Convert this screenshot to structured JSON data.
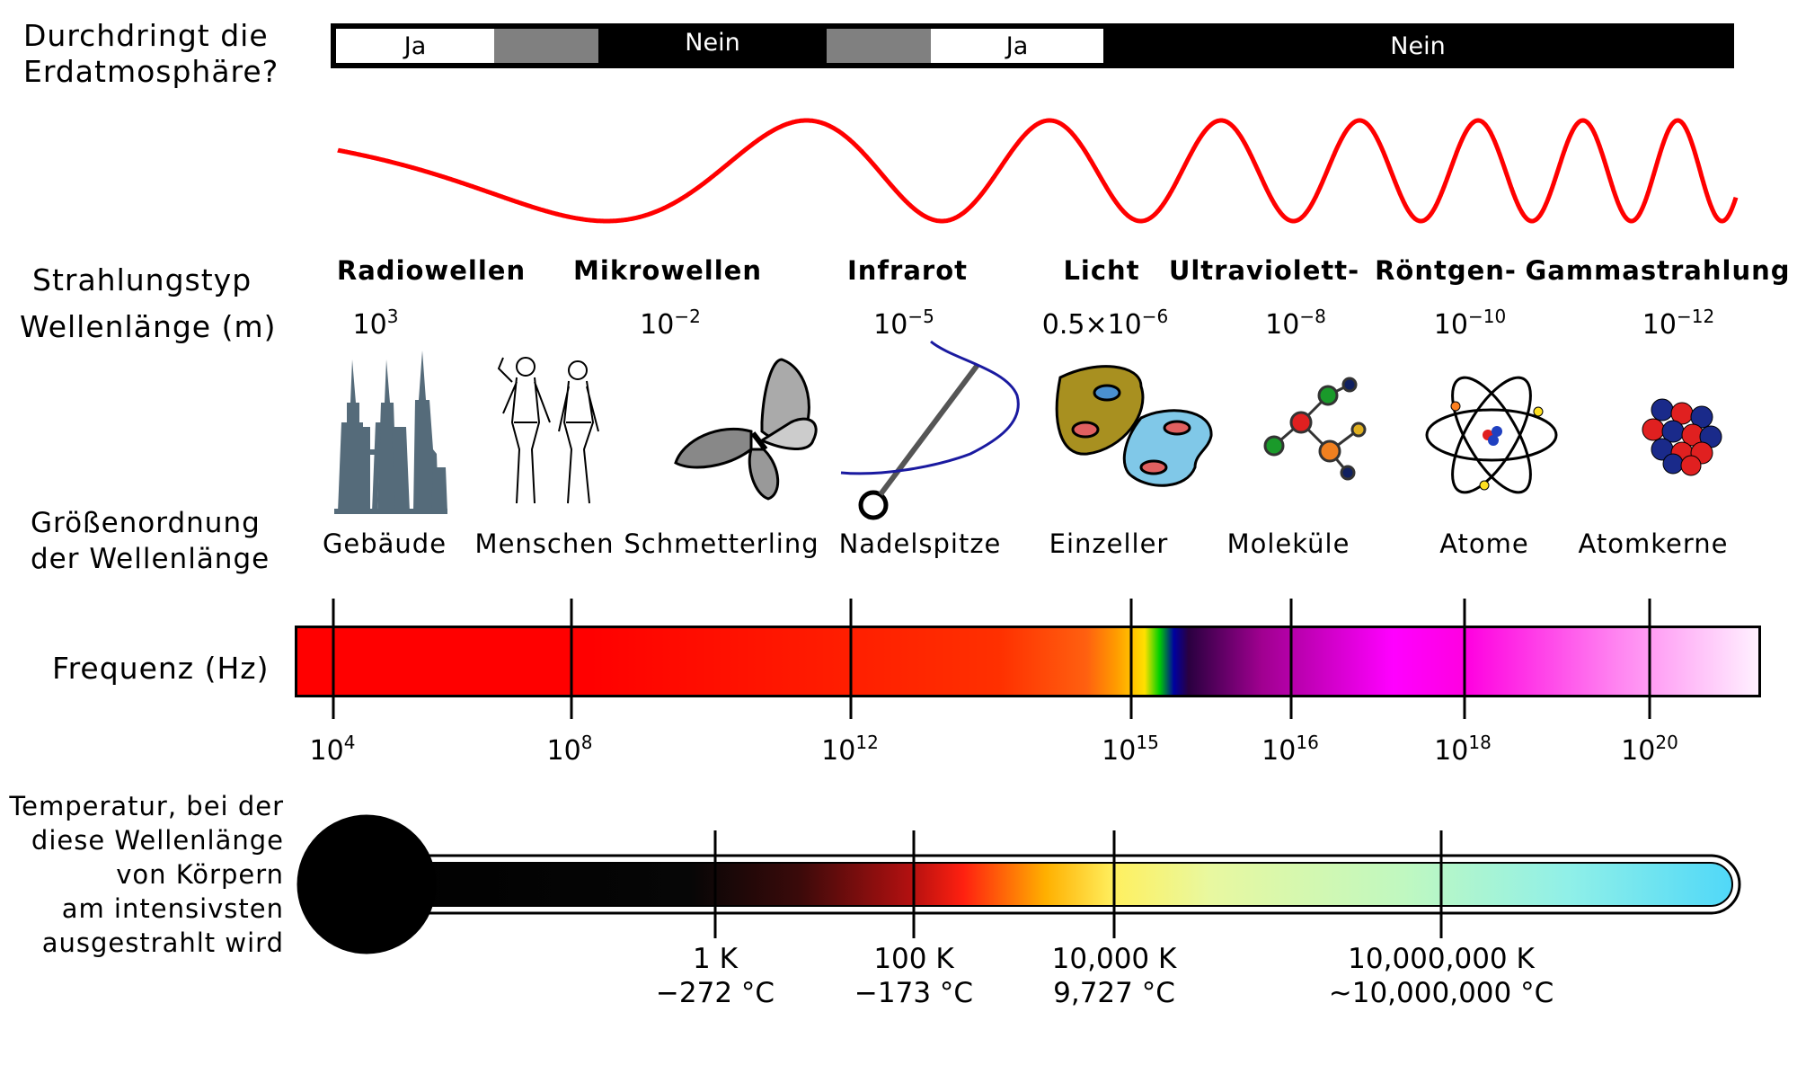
{
  "atmosphere": {
    "question_line1": "Durchdringt die",
    "question_line2": "Erdatmosphäre?",
    "segments": [
      {
        "label": "Ja",
        "fill": "#ffffff",
        "text_color": "#000000"
      },
      {
        "label": "",
        "fill": "#808080",
        "text_color": "#000000"
      },
      {
        "label": "Nein",
        "fill": "#000000",
        "text_color": "#ffffff"
      },
      {
        "label": "",
        "fill": "#808080",
        "text_color": "#000000"
      },
      {
        "label": "Ja",
        "fill": "#ffffff",
        "text_color": "#000000"
      },
      {
        "label": "Nein",
        "fill": "#000000",
        "text_color": "#ffffff"
      }
    ]
  },
  "wave": {
    "color": "#ff0000"
  },
  "row_labels": {
    "type": "Strahlungstyp",
    "wavelength": "Wellenlänge (m)",
    "scale_line1": "Größenordnung",
    "scale_line2": "der Wellenlänge",
    "frequency": "Frequenz (Hz)",
    "temp_lines": [
      "Temperatur, bei der",
      "diese Wellenlänge",
      "von Körpern",
      "am intensivsten",
      "ausgestrahlt wird"
    ]
  },
  "radiation_types": [
    "Radiowellen",
    "Mikrowellen",
    "Infrarot",
    "Licht",
    "Ultraviolett-",
    "Röntgen-",
    "Gammastrahlung"
  ],
  "wavelengths": [
    {
      "base": "10",
      "exp": "3"
    },
    {
      "base": "10",
      "exp": "−2"
    },
    {
      "base": "10",
      "exp": "−5"
    },
    {
      "base": "0.5×10",
      "exp": "−6"
    },
    {
      "base": "10",
      "exp": "−8"
    },
    {
      "base": "10",
      "exp": "−10"
    },
    {
      "base": "10",
      "exp": "−12"
    }
  ],
  "objects": [
    {
      "label": "Gebäude",
      "icon": "buildings-icon"
    },
    {
      "label": "Menschen",
      "icon": "humans-icon"
    },
    {
      "label": "Schmetterling",
      "icon": "butterfly-icon"
    },
    {
      "label": "Nadelspitze",
      "icon": "needle-icon"
    },
    {
      "label": "Einzeller",
      "icon": "protozoa-icon"
    },
    {
      "label": "Moleküle",
      "icon": "molecule-icon"
    },
    {
      "label": "Atome",
      "icon": "atom-icon"
    },
    {
      "label": "Atomkerne",
      "icon": "nucleus-icon"
    }
  ],
  "frequency_ticks": [
    {
      "base": "10",
      "exp": "4"
    },
    {
      "base": "10",
      "exp": "8"
    },
    {
      "base": "10",
      "exp": "12"
    },
    {
      "base": "10",
      "exp": "15"
    },
    {
      "base": "10",
      "exp": "16"
    },
    {
      "base": "10",
      "exp": "18"
    },
    {
      "base": "10",
      "exp": "20"
    }
  ],
  "temperature_ticks": [
    {
      "kelvin": "1 K",
      "celsius": "−272 °C"
    },
    {
      "kelvin": "100 K",
      "celsius": "−173 °C"
    },
    {
      "kelvin": "10,000 K",
      "celsius": "9,727 °C"
    },
    {
      "kelvin": "10,000,000 K",
      "celsius": "~10,000,000 °C"
    }
  ]
}
